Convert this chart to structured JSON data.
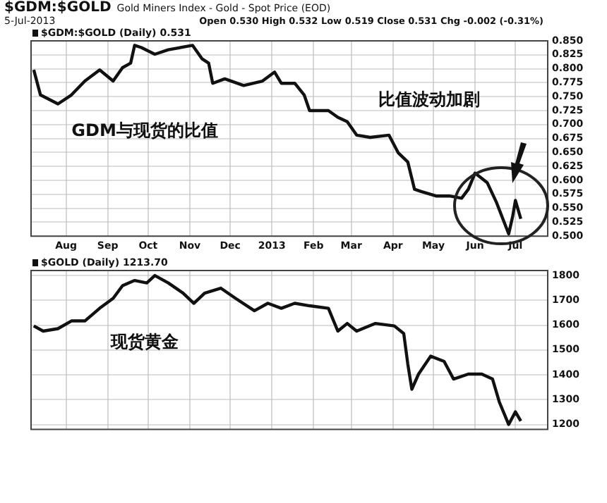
{
  "chart_data": [
    {
      "type": "line",
      "title": "$GDM:$GOLD",
      "subtitle": "Gold Miners Index - Gold - Spot Price (EOD)",
      "annotations": [
        "5-Jul-2013",
        "Open 0.530  High 0.532  Low 0.519  Close 0.531  Chg -0.002 (-0.31%)",
        "GDM与现货的比值",
        "比值波动加剧"
      ],
      "x": [
        "2012-07-08",
        "2012-07-13",
        "2012-07-26",
        "2012-08-05",
        "2012-08-15",
        "2012-08-26",
        "2012-09-05",
        "2012-09-12",
        "2012-09-18",
        "2012-09-21",
        "2012-09-26",
        "2012-10-06",
        "2012-10-16",
        "2012-11-03",
        "2012-11-10",
        "2012-11-15",
        "2012-11-18",
        "2012-11-27",
        "2012-12-11",
        "2012-12-25",
        "2013-01-03",
        "2013-01-08",
        "2013-01-18",
        "2013-01-25",
        "2013-01-29",
        "2013-02-12",
        "2013-02-19",
        "2013-02-26",
        "2013-03-05",
        "2013-03-15",
        "2013-03-29",
        "2013-04-05",
        "2013-04-12",
        "2013-04-17",
        "2013-04-22",
        "2013-05-03",
        "2013-05-13",
        "2013-05-22",
        "2013-05-27",
        "2013-06-01",
        "2013-06-10",
        "2013-06-17",
        "2013-06-26",
        "2013-06-29",
        "2013-07-01",
        "2013-07-05"
      ],
      "series": [
        {
          "name": "$GDM:$GOLD (Daily) 0.531",
          "color": "#111111",
          "values": [
            0.798,
            0.753,
            0.737,
            0.753,
            0.778,
            0.798,
            0.778,
            0.802,
            0.81,
            0.842,
            0.838,
            0.826,
            0.834,
            0.842,
            0.818,
            0.81,
            0.774,
            0.782,
            0.77,
            0.778,
            0.794,
            0.774,
            0.774,
            0.753,
            0.725,
            0.725,
            0.713,
            0.705,
            0.681,
            0.677,
            0.681,
            0.649,
            0.633,
            0.584,
            0.58,
            0.572,
            0.572,
            0.568,
            0.584,
            0.613,
            0.596,
            0.56,
            0.504,
            0.536,
            0.564,
            0.531
          ]
        }
      ],
      "xlim": [
        "2012-07-06",
        "2013-07-25"
      ],
      "xticks": [
        {
          "value": "2012-08-01",
          "label": "Aug"
        },
        {
          "value": "2012-09-01",
          "label": "Sep"
        },
        {
          "value": "2012-10-01",
          "label": "Oct"
        },
        {
          "value": "2012-11-01",
          "label": "Nov"
        },
        {
          "value": "2012-12-01",
          "label": "Dec"
        },
        {
          "value": "2013-01-01",
          "label": "2013"
        },
        {
          "value": "2013-02-01",
          "label": "Feb"
        },
        {
          "value": "2013-03-01",
          "label": "Mar"
        },
        {
          "value": "2013-04-01",
          "label": "Apr"
        },
        {
          "value": "2013-05-01",
          "label": "May"
        },
        {
          "value": "2013-06-01",
          "label": "Jun"
        },
        {
          "value": "2013-07-01",
          "label": "Jul"
        }
      ],
      "ylim": [
        0.5,
        0.85
      ],
      "yticks": [
        {
          "value": 0.5,
          "label": "0.500"
        },
        {
          "value": 0.525,
          "label": "0.525"
        },
        {
          "value": 0.55,
          "label": "0.550"
        },
        {
          "value": 0.575,
          "label": "0.575"
        },
        {
          "value": 0.6,
          "label": "0.600"
        },
        {
          "value": 0.625,
          "label": "0.625"
        },
        {
          "value": 0.65,
          "label": "0.650"
        },
        {
          "value": 0.675,
          "label": "0.675"
        },
        {
          "value": 0.7,
          "label": "0.700"
        },
        {
          "value": 0.725,
          "label": "0.725"
        },
        {
          "value": 0.75,
          "label": "0.750"
        },
        {
          "value": 0.775,
          "label": "0.775"
        },
        {
          "value": 0.8,
          "label": "0.800"
        },
        {
          "value": 0.825,
          "label": "0.825"
        },
        {
          "value": 0.85,
          "label": "0.850"
        }
      ],
      "grid": true,
      "legend": "top left"
    },
    {
      "type": "line",
      "annotations": [
        "现货黄金"
      ],
      "x": [
        "2012-07-08",
        "2012-07-15",
        "2012-07-26",
        "2012-08-05",
        "2012-08-15",
        "2012-08-26",
        "2012-09-05",
        "2012-09-12",
        "2012-09-21",
        "2012-09-30",
        "2012-10-06",
        "2012-10-16",
        "2012-10-27",
        "2012-11-04",
        "2012-11-12",
        "2012-11-24",
        "2012-12-05",
        "2012-12-19",
        "2012-12-29",
        "2013-01-08",
        "2013-01-18",
        "2013-01-29",
        "2013-02-12",
        "2013-02-19",
        "2013-02-26",
        "2013-03-05",
        "2013-03-19",
        "2013-04-02",
        "2013-04-09",
        "2013-04-12",
        "2013-04-15",
        "2013-04-20",
        "2013-04-29",
        "2013-05-09",
        "2013-05-16",
        "2013-05-27",
        "2013-06-06",
        "2013-06-14",
        "2013-06-19",
        "2013-06-26",
        "2013-07-01",
        "2013-07-05"
      ],
      "series": [
        {
          "name": "$GOLD (Daily) 1213.70",
          "color": "#111111",
          "values": [
            1597,
            1576,
            1586,
            1617,
            1617,
            1668,
            1708,
            1759,
            1780,
            1770,
            1800,
            1770,
            1729,
            1688,
            1729,
            1749,
            1708,
            1658,
            1688,
            1668,
            1688,
            1678,
            1668,
            1576,
            1607,
            1576,
            1607,
            1597,
            1566,
            1444,
            1342,
            1403,
            1475,
            1454,
            1383,
            1403,
            1403,
            1383,
            1291,
            1200,
            1251,
            1214
          ]
        }
      ],
      "xlim": [
        "2012-07-06",
        "2013-07-25"
      ],
      "ylim": [
        1180,
        1820
      ],
      "yticks": [
        1200,
        1300,
        1400,
        1500,
        1600,
        1700,
        1800
      ],
      "xticks": [
        {
          "value": "2012-08-01",
          "label": null
        },
        {
          "value": "2012-09-01",
          "label": null
        },
        {
          "value": "2012-10-01",
          "label": null
        },
        {
          "value": "2012-11-01",
          "label": null
        },
        {
          "value": "2012-12-01",
          "label": null
        },
        {
          "value": "2013-01-01",
          "label": null
        },
        {
          "value": "2013-02-01",
          "label": null
        },
        {
          "value": "2013-03-01",
          "label": null
        },
        {
          "value": "2013-04-01",
          "label": null
        },
        {
          "value": "2013-05-01",
          "label": null
        },
        {
          "value": "2013-06-01",
          "label": null
        },
        {
          "value": "2013-07-01",
          "label": null
        }
      ],
      "grid": true,
      "legend": "top left",
      "tick_labels": "y"
    }
  ]
}
